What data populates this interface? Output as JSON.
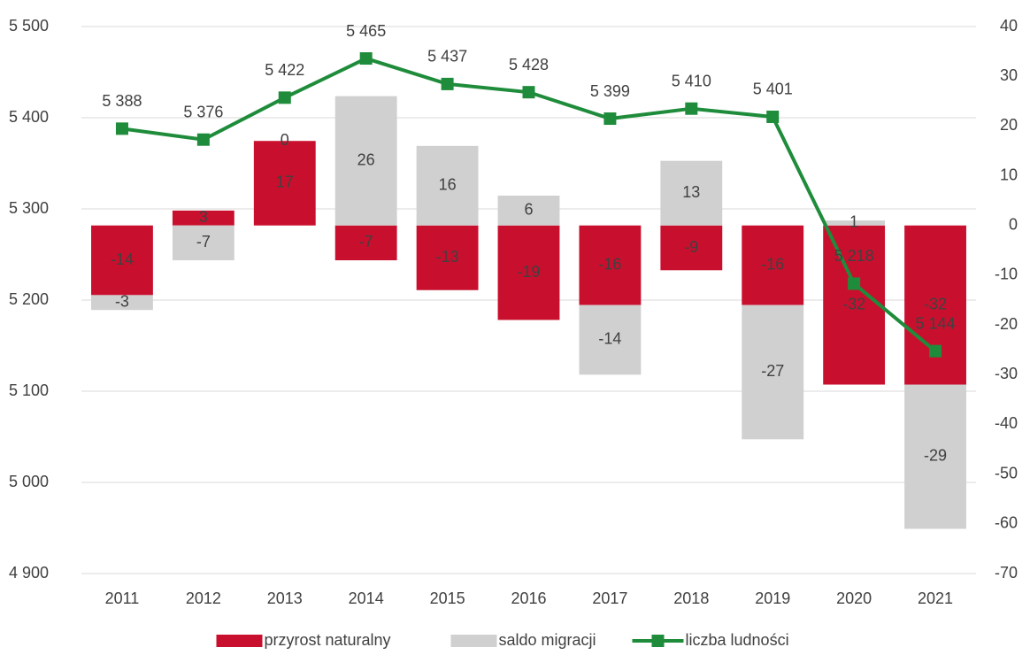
{
  "chart_data": {
    "type": "bar",
    "categories": [
      "2011",
      "2012",
      "2013",
      "2014",
      "2015",
      "2016",
      "2017",
      "2018",
      "2019",
      "2020",
      "2021"
    ],
    "series": [
      {
        "name": "przyrost naturalny",
        "type": "bar",
        "axis": "y2",
        "color": "#c8102e",
        "values": [
          -14,
          3,
          17,
          -7,
          -13,
          -19,
          -16,
          -9,
          -16,
          -32,
          -32
        ]
      },
      {
        "name": "saldo migracji",
        "type": "bar",
        "axis": "y2",
        "color": "#d0d0d0",
        "values": [
          -3,
          -7,
          0,
          26,
          16,
          6,
          -14,
          13,
          -27,
          1,
          -29
        ]
      },
      {
        "name": "liczba ludności",
        "type": "line",
        "axis": "y",
        "color": "#1e8c3a",
        "values": [
          5388,
          5376,
          5422,
          5465,
          5437,
          5428,
          5399,
          5410,
          5401,
          5218,
          5144
        ],
        "value_labels": [
          "5 388",
          "5 376",
          "5 422",
          "5 465",
          "5 437",
          "5 428",
          "5 399",
          "5 410",
          "5 401",
          "5 218",
          "5 144"
        ]
      }
    ],
    "ylim": [
      4900,
      5500
    ],
    "yticks": [
      {
        "value": 4900,
        "label": "4 900"
      },
      {
        "value": 5000,
        "label": "5 000"
      },
      {
        "value": 5100,
        "label": "5 100"
      },
      {
        "value": 5200,
        "label": "5 200"
      },
      {
        "value": 5300,
        "label": "5 300"
      },
      {
        "value": 5400,
        "label": "5 400"
      },
      {
        "value": 5500,
        "label": "5 500"
      }
    ],
    "y2lim": [
      -70,
      40
    ],
    "y2ticks": [
      -70,
      -60,
      -50,
      -40,
      -30,
      -20,
      -10,
      0,
      10,
      20,
      30,
      40
    ],
    "grid": true,
    "legend": "bottom"
  }
}
